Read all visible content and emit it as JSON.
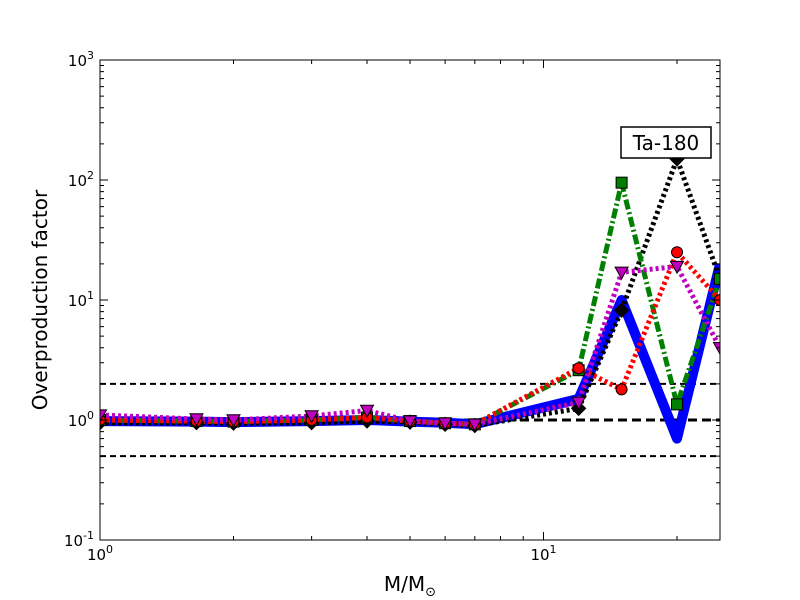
{
  "chart_data": {
    "type": "line",
    "title": "",
    "xlabel": "M/M",
    "xlabel_sub": "⊙",
    "ylabel": "Overproduction factor",
    "xscale": "log",
    "yscale": "log",
    "xlim": [
      1,
      25
    ],
    "ylim": [
      0.1,
      1000
    ],
    "x_ticks": [
      {
        "value": 1,
        "base": "10",
        "exp": "0"
      },
      {
        "value": 10,
        "base": "10",
        "exp": "1"
      }
    ],
    "y_ticks": [
      {
        "value": 0.1,
        "base": "10",
        "exp": "-1"
      },
      {
        "value": 1,
        "base": "10",
        "exp": "0"
      },
      {
        "value": 10,
        "base": "10",
        "exp": "1"
      },
      {
        "value": 100,
        "base": "10",
        "exp": "2"
      },
      {
        "value": 1000,
        "base": "10",
        "exp": "3"
      }
    ],
    "annotation": {
      "text": "Ta-180",
      "position": "top-right"
    },
    "reference_lines": [
      {
        "y": 2,
        "dash": "dashed",
        "width": "thin"
      },
      {
        "y": 1,
        "dash": "dashed",
        "width": "thick"
      },
      {
        "y": 0.5,
        "dash": "dashed",
        "width": "thin"
      }
    ],
    "series": [
      {
        "color": "#0000ff",
        "dash": "solid",
        "marker": "none",
        "width": "very-thick",
        "x": [
          1,
          1.65,
          2,
          3,
          4,
          5,
          6,
          7,
          12,
          15,
          20,
          25
        ],
        "y": [
          0.98,
          0.97,
          0.96,
          0.98,
          1.0,
          0.97,
          0.95,
          0.92,
          1.5,
          10,
          0.7,
          20
        ]
      },
      {
        "color": "#000000",
        "dash": "dotted",
        "marker": "diamond",
        "width": "thick",
        "x": [
          1,
          1.65,
          2,
          3,
          4,
          5,
          6,
          7,
          12,
          15,
          20,
          25
        ],
        "y": [
          0.95,
          0.95,
          0.94,
          0.95,
          0.98,
          0.96,
          0.92,
          0.9,
          1.25,
          8.2,
          150,
          15
        ]
      },
      {
        "color": "#008000",
        "dash": "dashdot",
        "marker": "square",
        "width": "thick",
        "x": [
          1,
          1.65,
          2,
          3,
          4,
          5,
          6,
          7,
          12,
          15,
          20,
          25
        ],
        "y": [
          1.0,
          0.98,
          0.97,
          1.0,
          1.05,
          0.98,
          0.94,
          0.92,
          2.6,
          95,
          1.35,
          15
        ]
      },
      {
        "color": "#ff0000",
        "dash": "dotted",
        "marker": "circle",
        "width": "thick",
        "x": [
          1,
          1.65,
          2,
          3,
          4,
          5,
          6,
          7,
          12,
          15,
          20,
          25
        ],
        "y": [
          1.0,
          0.98,
          0.97,
          1.0,
          1.05,
          0.98,
          0.94,
          0.92,
          2.7,
          1.8,
          25,
          10
        ]
      },
      {
        "color": "#bf00bf",
        "dash": "dotted",
        "marker": "triangle-down",
        "width": "thick",
        "x": [
          1,
          1.65,
          2,
          3,
          4,
          5,
          6,
          7,
          12,
          15,
          20,
          25
        ],
        "y": [
          1.1,
          1.02,
          1.0,
          1.08,
          1.2,
          0.98,
          0.94,
          0.92,
          1.4,
          17,
          19,
          4
        ]
      }
    ]
  }
}
